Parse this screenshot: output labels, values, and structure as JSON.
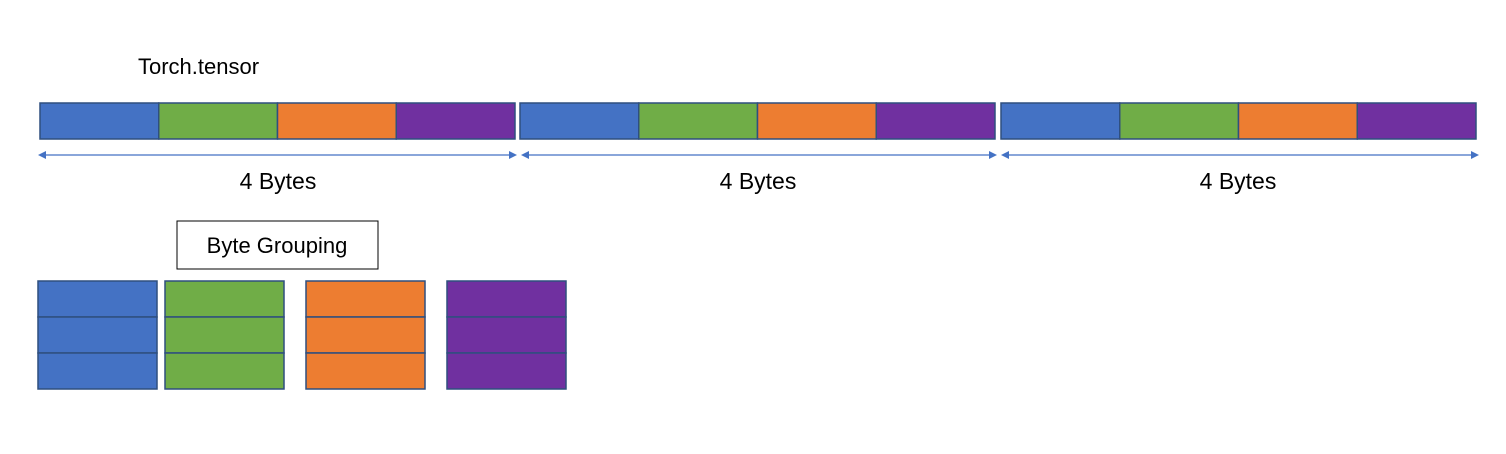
{
  "title": "Torch.tensor",
  "byte_colors": [
    "#4472c4",
    "#70ad47",
    "#ed7d31",
    "#7030a0"
  ],
  "byte_color_names": [
    "blue",
    "green",
    "orange",
    "purple"
  ],
  "tensor": {
    "elements": [
      {
        "label": "4 Bytes"
      },
      {
        "label": "4 Bytes"
      },
      {
        "label": "4 Bytes"
      }
    ],
    "bytes_per_element": 4
  },
  "grouping": {
    "label": "Byte Grouping",
    "groups_count": 4,
    "rows_per_group": 3
  }
}
